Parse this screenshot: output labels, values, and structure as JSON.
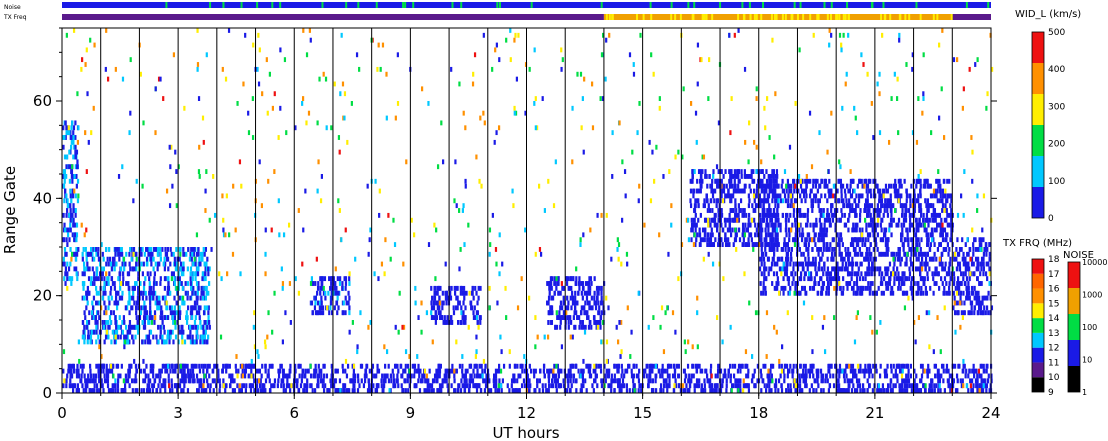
{
  "chart_data": {
    "type": "heatmap",
    "title": "",
    "xlabel": "UT hours",
    "ylabel": "Range Gate",
    "xlim": [
      0,
      24
    ],
    "ylim": [
      0,
      75
    ],
    "x_ticks": [
      "0",
      "3",
      "6",
      "9",
      "12",
      "15",
      "18",
      "21",
      "24"
    ],
    "y_ticks": [
      "0",
      "20",
      "40",
      "60"
    ],
    "hour_markers": [
      1,
      2,
      3,
      4,
      5,
      6,
      7,
      8,
      9,
      10,
      11,
      12,
      13,
      14,
      15,
      16,
      17,
      18,
      19,
      20,
      21,
      22,
      23
    ],
    "bands": [
      {
        "label": "Noise",
        "color": "#1a1ae6"
      },
      {
        "label": "TX Freq",
        "segments": [
          {
            "from": 0,
            "to": 14,
            "color": "#5a1a8c"
          },
          {
            "from": 14,
            "to": 23,
            "color": "#f0a000"
          },
          {
            "from": 23,
            "to": 24,
            "color": "#5a1a8c"
          }
        ]
      }
    ],
    "scatter_regions": [
      {
        "x": [
          0.0,
          0.4
        ],
        "y": [
          22,
          56
        ],
        "value_kms": 80
      },
      {
        "x": [
          0.5,
          3.8
        ],
        "y": [
          10,
          30
        ],
        "value_kms": 90
      },
      {
        "x": [
          6.4,
          7.4
        ],
        "y": [
          16,
          24
        ],
        "value_kms": 60
      },
      {
        "x": [
          9.5,
          10.8
        ],
        "y": [
          14,
          22
        ],
        "value_kms": 40
      },
      {
        "x": [
          12.5,
          14.0
        ],
        "y": [
          13,
          24
        ],
        "value_kms": 30
      },
      {
        "x": [
          16.2,
          18.5
        ],
        "y": [
          30,
          46
        ],
        "value_kms": 20
      },
      {
        "x": [
          18.0,
          23.0
        ],
        "y": [
          20,
          44
        ],
        "value_kms": 20
      },
      {
        "x": [
          23.0,
          24.0
        ],
        "y": [
          16,
          32
        ],
        "value_kms": 30
      },
      {
        "x": [
          0.0,
          24.0
        ],
        "y": [
          0,
          6
        ],
        "value_kms": 20
      }
    ],
    "colorbars": [
      {
        "title": "WID_L (km/s)",
        "ticks": [
          "0",
          "100",
          "200",
          "300",
          "400",
          "500"
        ],
        "colors": [
          "#1a1ae6",
          "#00c8ff",
          "#00dd44",
          "#ffee00",
          "#ff9000",
          "#ee1111"
        ]
      },
      {
        "title": "TX FRQ (MHz)",
        "ticks": [
          "9",
          "10",
          "11",
          "12",
          "13",
          "14",
          "15",
          "16",
          "17",
          "18"
        ],
        "colors": [
          "#000000",
          "#5a1a8c",
          "#1a1ae6",
          "#00c8ff",
          "#00dd44",
          "#ffee00",
          "#ff9000",
          "#ff6600",
          "#ee1111"
        ]
      },
      {
        "title": "NOISE",
        "ticks": [
          "1",
          "10",
          "100",
          "1000",
          "10000"
        ],
        "colors": [
          "#000000",
          "#1a1ae6",
          "#00dd44",
          "#f0a000",
          "#ee1111"
        ]
      }
    ]
  }
}
